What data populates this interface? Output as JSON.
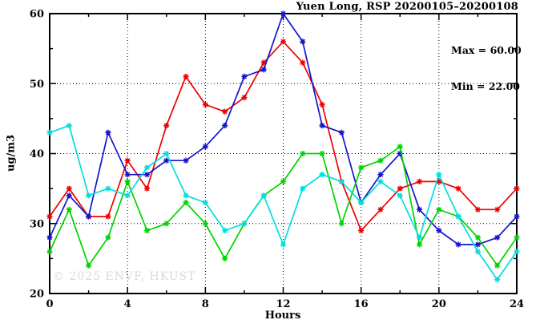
{
  "title": "Yuen Long, RSP 20200105–20200108",
  "annotations": {
    "max_label": "Max = 60.00",
    "min_label": "Min = 22.00"
  },
  "watermark": "© 2025 ENVF, HKUST",
  "chart_data": {
    "type": "line",
    "title": "Yuen Long, RSP 20200105–20200108",
    "xlabel": "Hours",
    "ylabel": "ug/m3",
    "xlim": [
      0,
      24
    ],
    "ylim": [
      20,
      60
    ],
    "grid": true,
    "legend_position": "none",
    "x": [
      0,
      1,
      2,
      3,
      4,
      5,
      6,
      7,
      8,
      9,
      10,
      11,
      12,
      13,
      14,
      15,
      16,
      17,
      18,
      19,
      20,
      21,
      22,
      23,
      24
    ],
    "series": [
      {
        "name": "series-red",
        "color": "#ee0000",
        "values": [
          31,
          35,
          31,
          31,
          39,
          35,
          44,
          51,
          47,
          46,
          48,
          53,
          56,
          53,
          47,
          36,
          29,
          32,
          35,
          36,
          36,
          35,
          32,
          32,
          35
        ]
      },
      {
        "name": "series-blue",
        "color": "#1414cc",
        "values": [
          28,
          34,
          31,
          43,
          37,
          37,
          39,
          39,
          41,
          44,
          51,
          52,
          60,
          56,
          44,
          43,
          33,
          37,
          40,
          32,
          29,
          27,
          27,
          28,
          31
        ]
      },
      {
        "name": "series-green",
        "color": "#00d400",
        "values": [
          26,
          32,
          24,
          28,
          36,
          29,
          30,
          33,
          30,
          25,
          30,
          34,
          36,
          40,
          40,
          30,
          38,
          39,
          41,
          27,
          32,
          31,
          28,
          24,
          28
        ]
      },
      {
        "name": "series-cyan",
        "color": "#00dede",
        "values": [
          43,
          44,
          34,
          35,
          34,
          38,
          40,
          34,
          33,
          29,
          30,
          34,
          27,
          35,
          37,
          36,
          33,
          36,
          34,
          28,
          37,
          31,
          26,
          22,
          26
        ]
      }
    ],
    "x_major_ticks": [
      0,
      4,
      8,
      12,
      16,
      20,
      24
    ],
    "x_minor_ticks": [
      2,
      6,
      10,
      14,
      18,
      22
    ],
    "y_major_ticks": [
      20,
      30,
      40,
      50,
      60
    ],
    "y_minor_ticks": [
      25,
      35,
      45,
      55
    ],
    "grid_x": [
      4,
      8,
      12,
      16,
      20
    ],
    "grid_y": [
      30,
      40,
      50
    ],
    "frame_color": "#000000",
    "max_value": "60.00",
    "min_value": "22.00"
  }
}
